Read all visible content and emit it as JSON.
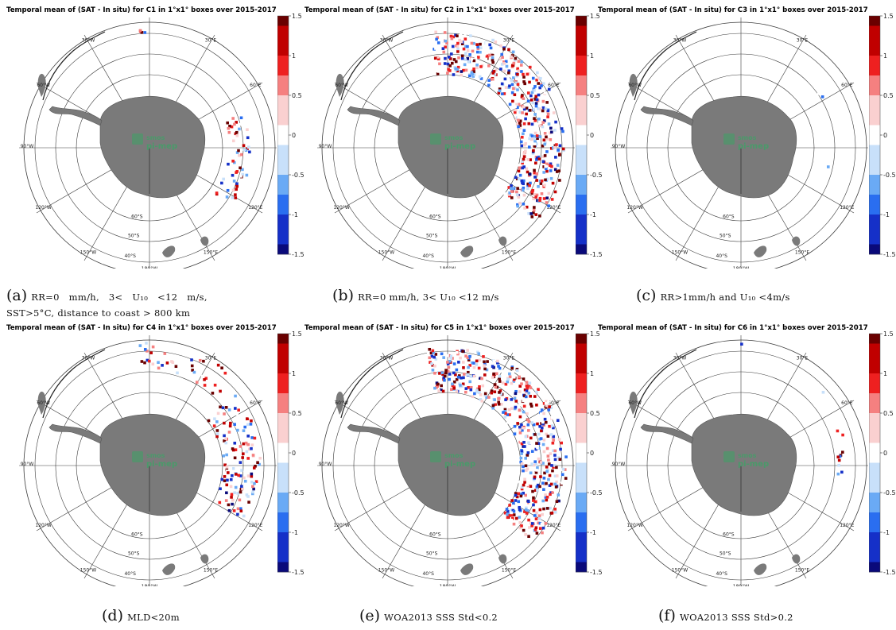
{
  "colors": {
    "land": "#7a7a7a",
    "grid": "#3a3a3a",
    "logo": "#4a9a6a"
  },
  "colorbar": {
    "ticks": [
      "1.5",
      "1",
      "0.5",
      "0",
      "-0.5",
      "-1",
      "-1.5"
    ],
    "stops": [
      "#0a0a7a",
      "#1530c8",
      "#2a6ef0",
      "#6aaaf5",
      "#c8e0fa",
      "#ffffff",
      "#fad0d0",
      "#f58080",
      "#ee2020",
      "#c00000",
      "#6a0000"
    ]
  },
  "map_labels": {
    "lon": [
      "30°W",
      "30°E",
      "60°W",
      "60°E",
      "90°W",
      "120°W",
      "120°E",
      "150°W",
      "150°E",
      "180°W"
    ],
    "lat": [
      "60°S",
      "50°S",
      "40°S"
    ],
    "logo_top": "smos",
    "logo_bottom": "pi-mep"
  },
  "panels": [
    {
      "title": "Temporal mean of (SAT - In situ) for C1 in 1°x1° boxes over 2015-2017",
      "caption_label": "(a)",
      "caption_line1": "RR=0 mm/h, 3< U₁₀ <12 m/s,",
      "caption_line2": "SST>5°C, distance to coast > 800 km"
    },
    {
      "title": "Temporal mean of (SAT - In situ) for C2 in 1°x1° boxes over 2015-2017",
      "caption_label": "(b)",
      "caption_line1": "RR=0 mm/h, 3< U₁₀ <12 m/s",
      "caption_line2": ""
    },
    {
      "title": "Temporal mean of (SAT - In situ) for C3 in 1°x1° boxes over 2015-2017",
      "caption_label": "(c)",
      "caption_line1": "RR>1mm/h and U₁₀ <4m/s",
      "caption_line2": ""
    },
    {
      "title": "Temporal mean of (SAT - In situ) for C4 in 1°x1° boxes over 2015-2017",
      "caption_label": "(d)",
      "caption_line1": "MLD<20m",
      "caption_line2": ""
    },
    {
      "title": "Temporal mean of (SAT - In situ) for C5 in 1°x1° boxes over 2015-2017",
      "caption_label": "(e)",
      "caption_line1": "WOA2013 SSS Std<0.2",
      "caption_line2": ""
    },
    {
      "title": "Temporal mean of (SAT - In situ) for C6 in 1°x1° boxes over 2015-2017",
      "caption_label": "(f)",
      "caption_line1": "WOA2013 SSS Std>0.2",
      "caption_line2": ""
    }
  ]
}
